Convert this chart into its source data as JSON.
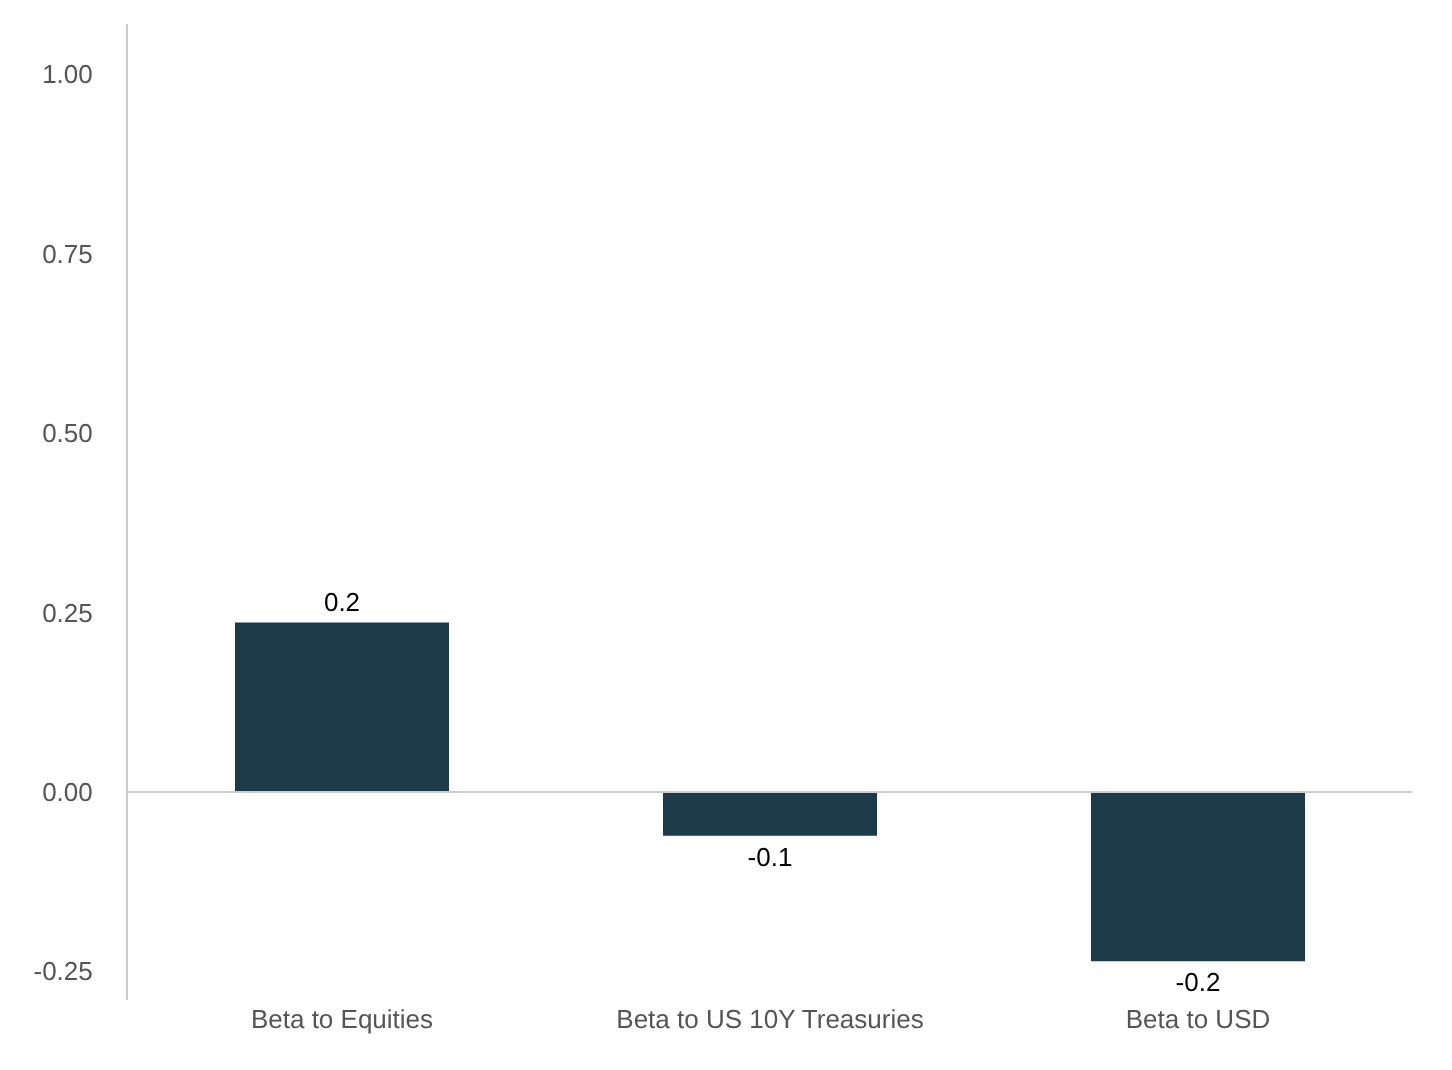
{
  "chart_data": {
    "type": "bar",
    "categories": [
      "Beta to Equities",
      "Beta to US 10Y Treasuries",
      "Beta to USD"
    ],
    "values": [
      0.236,
      -0.061,
      -0.236
    ],
    "value_labels": [
      "0.2",
      "-0.1",
      "-0.2"
    ],
    "color": "#1d3a48",
    "ylim": [
      -0.29,
      1.07
    ],
    "yticks": [
      {
        "value": -0.25,
        "label": "-0.25"
      },
      {
        "value": 0,
        "label": "0.00"
      },
      {
        "value": 0.25,
        "label": "0.25"
      },
      {
        "value": 0.5,
        "label": "0.50"
      },
      {
        "value": 0.75,
        "label": "0.75"
      },
      {
        "value": 1,
        "label": "1.00"
      }
    ],
    "ref_lines": [
      {
        "axis": "y",
        "value": 0,
        "color": "#cccccc"
      }
    ],
    "grid": false,
    "legend": false
  }
}
